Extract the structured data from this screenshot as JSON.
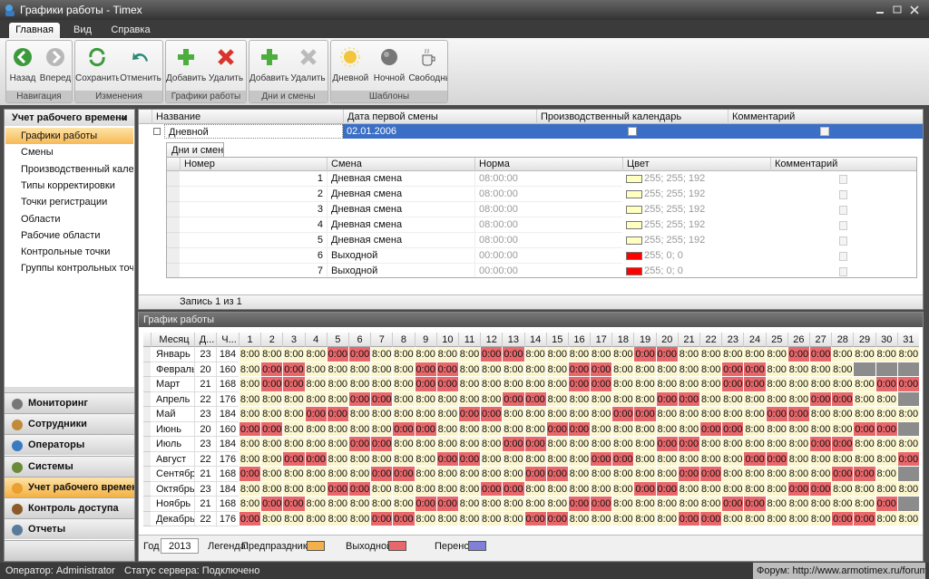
{
  "window": {
    "title": "Графики работы - Timex"
  },
  "tabs": [
    {
      "label": "Главная",
      "active": true
    },
    {
      "label": "Вид"
    },
    {
      "label": "Справка"
    }
  ],
  "ribbon": {
    "groups": [
      {
        "label": "Навигация",
        "buttons": [
          "Назад",
          "Вперед"
        ]
      },
      {
        "label": "Изменения",
        "buttons": [
          "Сохранить",
          "Отменить"
        ]
      },
      {
        "label": "Графики работы",
        "buttons": [
          "Добавить",
          "Удалить"
        ]
      },
      {
        "label": "Дни и смены",
        "buttons": [
          "Добавить",
          "Удалить"
        ]
      },
      {
        "label": "Шаблоны",
        "buttons": [
          "Дневной",
          "Ночной",
          "Свободный"
        ]
      }
    ]
  },
  "sidebar": {
    "title": "Учет рабочего времени",
    "collapse": "«",
    "items": [
      {
        "label": "Графики работы",
        "active": true
      },
      {
        "label": "Смены"
      },
      {
        "label": "Производственный кален..."
      },
      {
        "label": "Типы корректировки"
      },
      {
        "label": "Точки регистрации"
      },
      {
        "label": "Области"
      },
      {
        "label": "Рабочие области"
      },
      {
        "label": "Контрольные точки"
      },
      {
        "label": "Группы контрольных точек"
      }
    ],
    "nav": [
      {
        "label": "Мониторинг"
      },
      {
        "label": "Сотрудники"
      },
      {
        "label": "Операторы"
      },
      {
        "label": "Системы"
      },
      {
        "label": "Учет рабочего времени",
        "active": true
      },
      {
        "label": "Контроль доступа"
      },
      {
        "label": "Отчеты"
      }
    ]
  },
  "schedules": {
    "columns": [
      "Название",
      "Дата первой смены",
      "Производственный календарь",
      "Комментарий"
    ],
    "rows": [
      [
        "Дневной",
        "02.01.2006"
      ]
    ]
  },
  "detail_tab": "Дни и смены",
  "shifts": {
    "columns": [
      "Номер",
      "Смена",
      "Норма",
      "Цвет",
      "Комментарий"
    ],
    "rows": [
      {
        "number": 1,
        "shift": "Дневная смена",
        "norm": "08:00:00",
        "color": "#ffffc0",
        "color_text": "255; 255; 192"
      },
      {
        "number": 2,
        "shift": "Дневная смена",
        "norm": "08:00:00",
        "color": "#ffffc0",
        "color_text": "255; 255; 192"
      },
      {
        "number": 3,
        "shift": "Дневная смена",
        "norm": "08:00:00",
        "color": "#ffffc0",
        "color_text": "255; 255; 192"
      },
      {
        "number": 4,
        "shift": "Дневная смена",
        "norm": "08:00:00",
        "color": "#ffffc0",
        "color_text": "255; 255; 192"
      },
      {
        "number": 5,
        "shift": "Дневная смена",
        "norm": "08:00:00",
        "color": "#ffffc0",
        "color_text": "255; 255; 192"
      },
      {
        "number": 6,
        "shift": "Выходной",
        "norm": "00:00:00",
        "color": "#ff0000",
        "color_text": "255; 0; 0"
      },
      {
        "number": 7,
        "shift": "Выходной",
        "norm": "00:00:00",
        "color": "#ff0000",
        "color_text": "255; 0; 0"
      }
    ]
  },
  "navigator": "Запись 1 из 1",
  "calendar": {
    "title": "График работы",
    "columns": [
      "Месяц",
      "Д...",
      "Ч..."
    ],
    "day_numbers": [
      1,
      2,
      3,
      4,
      5,
      6,
      7,
      8,
      9,
      10,
      11,
      12,
      13,
      14,
      15,
      16,
      17,
      18,
      19,
      20,
      21,
      22,
      23,
      24,
      25,
      26,
      27,
      28,
      29,
      30,
      31
    ],
    "work_color": "#fbf6cf",
    "off_color": "#e8676b",
    "none_color": "#8c8c8c",
    "months": [
      {
        "name": "Январь",
        "days": 23,
        "hours": 184,
        "cells": [
          "8:00",
          "8:00",
          "8:00",
          "8:00",
          "0:00",
          "0:00",
          "8:00",
          "8:00",
          "8:00",
          "8:00",
          "8:00",
          "0:00",
          "0:00",
          "8:00",
          "8:00",
          "8:00",
          "8:00",
          "8:00",
          "0:00",
          "0:00",
          "8:00",
          "8:00",
          "8:00",
          "8:00",
          "8:00",
          "0:00",
          "0:00",
          "8:00",
          "8:00",
          "8:00",
          "8:00"
        ]
      },
      {
        "name": "Февраль",
        "days": 20,
        "hours": 160,
        "cells": [
          "8:00",
          "0:00",
          "0:00",
          "8:00",
          "8:00",
          "8:00",
          "8:00",
          "8:00",
          "0:00",
          "0:00",
          "8:00",
          "8:00",
          "8:00",
          "8:00",
          "8:00",
          "0:00",
          "0:00",
          "8:00",
          "8:00",
          "8:00",
          "8:00",
          "8:00",
          "0:00",
          "0:00",
          "8:00",
          "8:00",
          "8:00",
          "8:00",
          null,
          null,
          null
        ]
      },
      {
        "name": "Март",
        "days": 21,
        "hours": 168,
        "cells": [
          "8:00",
          "0:00",
          "0:00",
          "8:00",
          "8:00",
          "8:00",
          "8:00",
          "8:00",
          "0:00",
          "0:00",
          "8:00",
          "8:00",
          "8:00",
          "8:00",
          "8:00",
          "0:00",
          "0:00",
          "8:00",
          "8:00",
          "8:00",
          "8:00",
          "8:00",
          "0:00",
          "0:00",
          "8:00",
          "8:00",
          "8:00",
          "8:00",
          "8:00",
          "0:00",
          "0:00"
        ]
      },
      {
        "name": "Апрель",
        "days": 22,
        "hours": 176,
        "cells": [
          "8:00",
          "8:00",
          "8:00",
          "8:00",
          "8:00",
          "0:00",
          "0:00",
          "8:00",
          "8:00",
          "8:00",
          "8:00",
          "8:00",
          "0:00",
          "0:00",
          "8:00",
          "8:00",
          "8:00",
          "8:00",
          "8:00",
          "0:00",
          "0:00",
          "8:00",
          "8:00",
          "8:00",
          "8:00",
          "8:00",
          "0:00",
          "0:00",
          "8:00",
          "8:00",
          null
        ]
      },
      {
        "name": "Май",
        "days": 23,
        "hours": 184,
        "cells": [
          "8:00",
          "8:00",
          "8:00",
          "0:00",
          "0:00",
          "8:00",
          "8:00",
          "8:00",
          "8:00",
          "8:00",
          "0:00",
          "0:00",
          "8:00",
          "8:00",
          "8:00",
          "8:00",
          "8:00",
          "0:00",
          "0:00",
          "8:00",
          "8:00",
          "8:00",
          "8:00",
          "8:00",
          "0:00",
          "0:00",
          "8:00",
          "8:00",
          "8:00",
          "8:00",
          "8:00"
        ]
      },
      {
        "name": "Июнь",
        "days": 20,
        "hours": 160,
        "cells": [
          "0:00",
          "0:00",
          "8:00",
          "8:00",
          "8:00",
          "8:00",
          "8:00",
          "0:00",
          "0:00",
          "8:00",
          "8:00",
          "8:00",
          "8:00",
          "8:00",
          "0:00",
          "0:00",
          "8:00",
          "8:00",
          "8:00",
          "8:00",
          "8:00",
          "0:00",
          "0:00",
          "8:00",
          "8:00",
          "8:00",
          "8:00",
          "8:00",
          "0:00",
          "0:00",
          null
        ]
      },
      {
        "name": "Июль",
        "days": 23,
        "hours": 184,
        "cells": [
          "8:00",
          "8:00",
          "8:00",
          "8:00",
          "8:00",
          "0:00",
          "0:00",
          "8:00",
          "8:00",
          "8:00",
          "8:00",
          "8:00",
          "0:00",
          "0:00",
          "8:00",
          "8:00",
          "8:00",
          "8:00",
          "8:00",
          "0:00",
          "0:00",
          "8:00",
          "8:00",
          "8:00",
          "8:00",
          "8:00",
          "0:00",
          "0:00",
          "8:00",
          "8:00",
          "8:00"
        ]
      },
      {
        "name": "Август",
        "days": 22,
        "hours": 176,
        "cells": [
          "8:00",
          "8:00",
          "0:00",
          "0:00",
          "8:00",
          "8:00",
          "8:00",
          "8:00",
          "8:00",
          "0:00",
          "0:00",
          "8:00",
          "8:00",
          "8:00",
          "8:00",
          "8:00",
          "0:00",
          "0:00",
          "8:00",
          "8:00",
          "8:00",
          "8:00",
          "8:00",
          "0:00",
          "0:00",
          "8:00",
          "8:00",
          "8:00",
          "8:00",
          "8:00",
          "0:00"
        ]
      },
      {
        "name": "Сентябрь",
        "days": 21,
        "hours": 168,
        "cells": [
          "0:00",
          "8:00",
          "8:00",
          "8:00",
          "8:00",
          "8:00",
          "0:00",
          "0:00",
          "8:00",
          "8:00",
          "8:00",
          "8:00",
          "8:00",
          "0:00",
          "0:00",
          "8:00",
          "8:00",
          "8:00",
          "8:00",
          "8:00",
          "0:00",
          "0:00",
          "8:00",
          "8:00",
          "8:00",
          "8:00",
          "8:00",
          "0:00",
          "0:00",
          "8:00",
          null
        ]
      },
      {
        "name": "Октябрь",
        "days": 23,
        "hours": 184,
        "cells": [
          "8:00",
          "8:00",
          "8:00",
          "8:00",
          "0:00",
          "0:00",
          "8:00",
          "8:00",
          "8:00",
          "8:00",
          "8:00",
          "0:00",
          "0:00",
          "8:00",
          "8:00",
          "8:00",
          "8:00",
          "8:00",
          "0:00",
          "0:00",
          "8:00",
          "8:00",
          "8:00",
          "8:00",
          "8:00",
          "0:00",
          "0:00",
          "8:00",
          "8:00",
          "8:00",
          "8:00"
        ]
      },
      {
        "name": "Ноябрь",
        "days": 21,
        "hours": 168,
        "cells": [
          "8:00",
          "0:00",
          "0:00",
          "8:00",
          "8:00",
          "8:00",
          "8:00",
          "8:00",
          "0:00",
          "0:00",
          "8:00",
          "8:00",
          "8:00",
          "8:00",
          "8:00",
          "0:00",
          "0:00",
          "8:00",
          "8:00",
          "8:00",
          "8:00",
          "8:00",
          "0:00",
          "0:00",
          "8:00",
          "8:00",
          "8:00",
          "8:00",
          "8:00",
          "0:00",
          null
        ]
      },
      {
        "name": "Декабрь",
        "days": 22,
        "hours": 176,
        "cells": [
          "0:00",
          "8:00",
          "8:00",
          "8:00",
          "8:00",
          "8:00",
          "0:00",
          "0:00",
          "8:00",
          "8:00",
          "8:00",
          "8:00",
          "8:00",
          "0:00",
          "0:00",
          "8:00",
          "8:00",
          "8:00",
          "8:00",
          "8:00",
          "0:00",
          "0:00",
          "8:00",
          "8:00",
          "8:00",
          "8:00",
          "8:00",
          "0:00",
          "0:00",
          "8:00",
          "8:00"
        ]
      }
    ],
    "year_label": "Год",
    "year": 2013,
    "legend_label": "Легенда:",
    "legend": [
      {
        "name": "Предпраздник",
        "color": "#f4b04a"
      },
      {
        "name": "Выходной",
        "color": "#e8676b"
      },
      {
        "name": "Перенос",
        "color": "#8080d8"
      }
    ]
  },
  "status": {
    "operator": "Оператор: Administrator",
    "server": "Статус сервера: Подключено",
    "forum": "Форум: http://www.armotimex.ru/forum/"
  }
}
